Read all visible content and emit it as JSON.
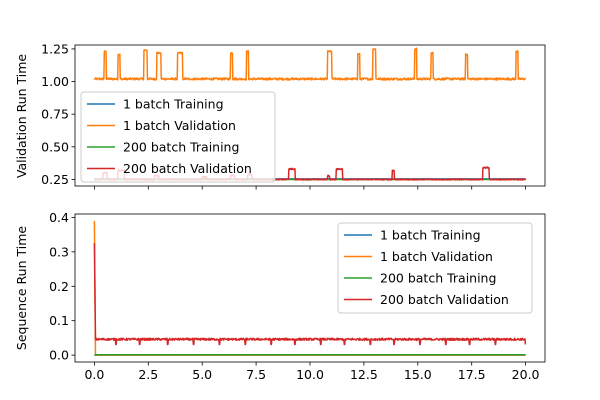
{
  "chart_data": [
    {
      "type": "line",
      "xlabel": "",
      "ylabel": "Validation Run Time",
      "xlim": [
        -0.9,
        20.9
      ],
      "ylim": [
        0.2,
        1.28
      ],
      "xticks": [
        0.0,
        2.5,
        5.0,
        7.5,
        10.0,
        12.5,
        15.0,
        17.5,
        20.0
      ],
      "xtick_labels": [],
      "yticks": [
        0.25,
        0.5,
        0.75,
        1.0,
        1.25
      ],
      "ytick_labels": [
        "0.25",
        "0.50",
        "0.75",
        "1.00",
        "1.25"
      ],
      "legend_position": "center-left",
      "series": [
        {
          "name": "1 batch Training",
          "color": "#1f77b4",
          "x": [
            0,
            20
          ],
          "y": [
            0.255,
            0.255
          ]
        },
        {
          "name": "1 batch Validation",
          "color": "#ff7f0e",
          "base": 1.02,
          "x": [
            0,
            20
          ],
          "spikes": [
            {
              "x0": 0.45,
              "x1": 0.55,
              "y": 1.23
            },
            {
              "x0": 1.1,
              "x1": 1.2,
              "y": 1.21
            },
            {
              "x0": 2.3,
              "x1": 2.45,
              "y": 1.24
            },
            {
              "x0": 2.9,
              "x1": 3.1,
              "y": 1.22
            },
            {
              "x0": 3.85,
              "x1": 4.1,
              "y": 1.22
            },
            {
              "x0": 6.3,
              "x1": 6.4,
              "y": 1.22
            },
            {
              "x0": 7.05,
              "x1": 7.15,
              "y": 1.23
            },
            {
              "x0": 10.8,
              "x1": 11.0,
              "y": 1.23
            },
            {
              "x0": 12.2,
              "x1": 12.3,
              "y": 1.21
            },
            {
              "x0": 12.9,
              "x1": 13.05,
              "y": 1.25
            },
            {
              "x0": 14.85,
              "x1": 14.95,
              "y": 1.25
            },
            {
              "x0": 15.6,
              "x1": 15.7,
              "y": 1.22
            },
            {
              "x0": 17.2,
              "x1": 17.3,
              "y": 1.21
            },
            {
              "x0": 19.55,
              "x1": 19.65,
              "y": 1.23
            }
          ]
        },
        {
          "name": "200 batch Training",
          "color": "#2ca02c",
          "x": [
            0,
            20
          ],
          "y": [
            0.25,
            0.25
          ]
        },
        {
          "name": "200 batch Validation",
          "color": "#d62728",
          "base": 0.25,
          "x": [
            0,
            20
          ],
          "spikes": [
            {
              "x0": 0.4,
              "x1": 0.6,
              "y": 0.3
            },
            {
              "x0": 1.1,
              "x1": 1.4,
              "y": 0.32
            },
            {
              "x0": 2.8,
              "x1": 3.0,
              "y": 0.28
            },
            {
              "x0": 5.0,
              "x1": 5.2,
              "y": 0.27
            },
            {
              "x0": 6.3,
              "x1": 6.5,
              "y": 0.28
            },
            {
              "x0": 7.1,
              "x1": 7.3,
              "y": 0.29
            },
            {
              "x0": 9.0,
              "x1": 9.3,
              "y": 0.33
            },
            {
              "x0": 10.8,
              "x1": 10.9,
              "y": 0.28
            },
            {
              "x0": 11.2,
              "x1": 11.5,
              "y": 0.33
            },
            {
              "x0": 13.8,
              "x1": 13.9,
              "y": 0.32
            },
            {
              "x0": 18.0,
              "x1": 18.3,
              "y": 0.34
            }
          ]
        }
      ]
    },
    {
      "type": "line",
      "xlabel": "",
      "ylabel": "Sequence Run Time",
      "xlim": [
        -0.9,
        20.9
      ],
      "ylim": [
        -0.02,
        0.41
      ],
      "xticks": [
        0.0,
        2.5,
        5.0,
        7.5,
        10.0,
        12.5,
        15.0,
        17.5,
        20.0
      ],
      "xtick_labels": [
        "0.0",
        "2.5",
        "5.0",
        "7.5",
        "10.0",
        "12.5",
        "15.0",
        "17.5",
        "20.0"
      ],
      "yticks": [
        0.0,
        0.1,
        0.2,
        0.3,
        0.4
      ],
      "ytick_labels": [
        "0.0",
        "0.1",
        "0.2",
        "0.3",
        "0.4"
      ],
      "legend_position": "upper-right",
      "series": [
        {
          "name": "1 batch Training",
          "color": "#1f77b4",
          "x": [
            0,
            20
          ],
          "y": [
            0.0,
            0.0
          ]
        },
        {
          "name": "1 batch Validation",
          "color": "#ff7f0e",
          "start_peak": 0.39,
          "base": 0.0,
          "x": [
            0,
            20
          ]
        },
        {
          "name": "200 batch Training",
          "color": "#2ca02c",
          "x": [
            0,
            20
          ],
          "y": [
            0.001,
            0.001
          ]
        },
        {
          "name": "200 batch Validation",
          "color": "#d62728",
          "start_peak": 0.325,
          "base": 0.046,
          "x": [
            0,
            20
          ],
          "dips": [
            1.0,
            2.1,
            3.4,
            4.6,
            5.8,
            7.0,
            8.2,
            9.3,
            10.5,
            11.6,
            12.8,
            13.9,
            15.1,
            16.3,
            17.4,
            18.6,
            20.0
          ]
        }
      ]
    }
  ]
}
